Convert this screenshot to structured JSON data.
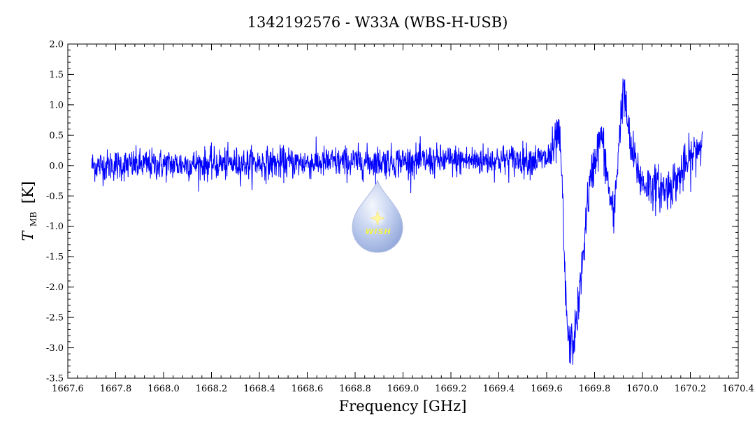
{
  "chart_data": {
    "type": "line",
    "title": "1342192576 - W33A (WBS-H-USB)",
    "xlabel": "Frequency [GHz]",
    "ylabel": "T",
    "ylabel_sub": "MB",
    "ylabel_unit": "[K]",
    "xlim": [
      1667.6,
      1670.4
    ],
    "ylim": [
      -3.5,
      2.0
    ],
    "xticks": [
      1667.6,
      1667.8,
      1668.0,
      1668.2,
      1668.4,
      1668.6,
      1668.8,
      1669.0,
      1669.2,
      1669.4,
      1669.6,
      1669.8,
      1670.0,
      1670.2,
      1670.4
    ],
    "xtick_labels": [
      "1667.6",
      "1667.8",
      "1668.0",
      "1668.2",
      "1668.4",
      "1668.6",
      "1668.8",
      "1669.0",
      "1669.2",
      "1669.4",
      "1669.6",
      "1669.8",
      "1670.0",
      "1670.2",
      "1670.4"
    ],
    "yticks": [
      -3.5,
      -3.0,
      -2.5,
      -2.0,
      -1.5,
      -1.0,
      -0.5,
      0.0,
      0.5,
      1.0,
      1.5,
      2.0
    ],
    "ytick_labels": [
      "-3.5",
      "-3.0",
      "-2.5",
      "-2.0",
      "-1.5",
      "-1.0",
      "-0.5",
      "0.0",
      "0.5",
      "1.0",
      "1.5",
      "2.0"
    ],
    "grid": false,
    "series": [
      {
        "color": "#0000ff",
        "x_start": 1667.7,
        "x_end": 1670.25,
        "noise_rms": 0.13,
        "baseline_profile_x": [
          1667.7,
          1669.6,
          1669.63,
          1669.65,
          1669.665,
          1669.675,
          1669.69,
          1669.71,
          1669.73,
          1669.75,
          1669.77,
          1669.8,
          1669.83,
          1669.86,
          1669.88,
          1669.9,
          1669.92,
          1669.95,
          1670.0,
          1670.1,
          1670.15,
          1670.2,
          1670.25
        ],
        "baseline_profile_y": [
          0.0,
          0.1,
          0.25,
          0.55,
          -0.3,
          -1.8,
          -2.9,
          -2.95,
          -2.4,
          -1.6,
          -0.6,
          0.1,
          0.5,
          -0.4,
          -0.9,
          0.3,
          1.3,
          0.3,
          -0.3,
          -0.4,
          -0.2,
          0.1,
          0.4
        ]
      }
    ]
  },
  "logo": {
    "text": "WISH",
    "colors": {
      "drop_top": "#e8eef9",
      "drop_bottom": "#8ea7db",
      "star": "#fff7a0"
    }
  }
}
